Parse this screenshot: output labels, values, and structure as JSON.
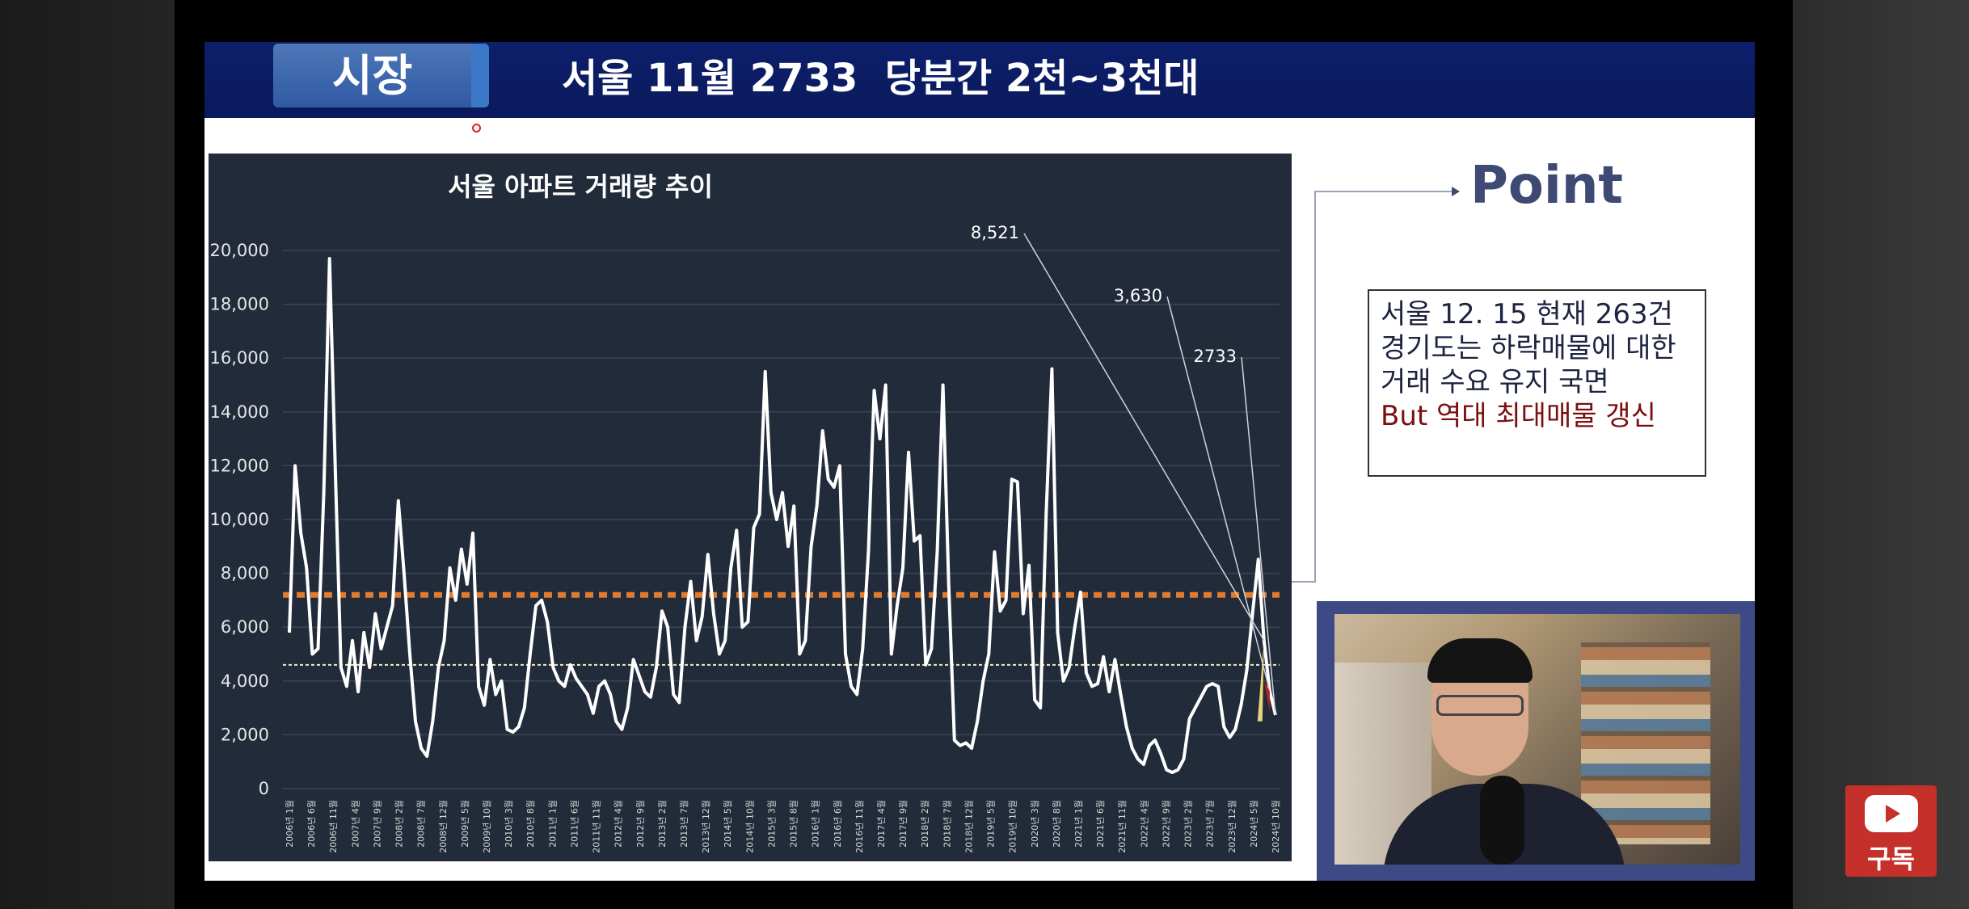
{
  "slide": {
    "tag": "시장",
    "headline": "서울 11월 2733  당분간 2천~3천대"
  },
  "point": {
    "title": "Point",
    "notes": [
      "서울 12. 15 현재 263건",
      "경기도는 하락매물에 대한",
      "거래 수요 유지 국면",
      "But 역대 최대매물 갱신"
    ]
  },
  "subscribe": {
    "label": "구독"
  },
  "colors": {
    "title_bar": "#0b1a5c",
    "chart_bg": "#222b3a",
    "line": "#ffffff",
    "ref_line_orange": "#e07b2f",
    "ref_line_light": "#f3f0b8",
    "note_red": "#7a1010",
    "subscribe_red": "#c5302b"
  },
  "chart_data": {
    "type": "line",
    "title": "서울 아파트 거래량 추이",
    "ylim": [
      0,
      20000
    ],
    "y_ticks": [
      "20,000",
      "18,000",
      "16,000",
      "14,000",
      "12,000",
      "10,000",
      "8,000",
      "6,000",
      "4,000",
      "2,000",
      "0"
    ],
    "x_ticks": [
      "2006년 1월",
      "2006년 6월",
      "2006년 11월",
      "2007년 4월",
      "2007년 9월",
      "2008년 2월",
      "2008년 7월",
      "2008년 12월",
      "2009년 5월",
      "2009년 10월",
      "2010년 3월",
      "2010년 8월",
      "2011년 1월",
      "2011년 6월",
      "2011년 11월",
      "2012년 4월",
      "2012년 9월",
      "2013년 2월",
      "2013년 7월",
      "2013년 12월",
      "2014년 5월",
      "2014년 10월",
      "2015년 3월",
      "2015년 8월",
      "2016년 1월",
      "2016년 6월",
      "2016년 11월",
      "2017년 4월",
      "2017년 9월",
      "2018년 2월",
      "2018년 7월",
      "2018년 12월",
      "2019년 5월",
      "2019년 10월",
      "2020년 3월",
      "2020년 8월",
      "2021년 1월",
      "2021년 6월",
      "2021년 11월",
      "2022년 4월",
      "2022년 9월",
      "2023년 2월",
      "2023년 7월",
      "2023년 12월",
      "2024년 5월",
      "2024년 10월"
    ],
    "series": [
      {
        "values": [
          5800,
          12000,
          9500,
          8200,
          5000,
          5200,
          11000,
          19700,
          12000,
          4500,
          3800,
          5500,
          3600,
          5800,
          4500,
          6500,
          5200,
          6000,
          6800,
          10700,
          8000,
          5000,
          2500,
          1500,
          1200,
          2500,
          4500,
          5500,
          8200,
          7000,
          8900,
          7600,
          9500,
          3800,
          3100,
          4800,
          3500,
          4000,
          2200,
          2100,
          2300,
          3000,
          5000,
          6800,
          7000,
          6200,
          4500,
          4000,
          3800,
          4600,
          4100,
          3800,
          3500,
          2800,
          3800,
          4000,
          3500,
          2500,
          2200,
          3000,
          4800,
          4200,
          3600,
          3400,
          4500,
          6600,
          6000,
          3500,
          3200,
          6000,
          7700,
          5500,
          6400,
          8700,
          6500,
          5000,
          5500,
          8200,
          9600,
          6000,
          6200,
          9700,
          10200,
          15500,
          11000,
          10000,
          11000,
          9000,
          10500,
          5000,
          5500,
          9000,
          10500,
          13300,
          11500,
          11200,
          12000,
          5000,
          3800,
          3500,
          5200,
          8800,
          14800,
          13000,
          15000,
          5000,
          6800,
          8200,
          12500,
          9200,
          9400,
          4600,
          5200,
          8800,
          15000,
          7600,
          1800,
          1600,
          1700,
          1500,
          2500,
          4000,
          5000,
          8800,
          6600,
          7000,
          11500,
          11400,
          6500,
          8300,
          3300,
          3000,
          10200,
          15600,
          5800,
          4000,
          4500,
          6000,
          7300,
          4300,
          3800,
          3900,
          4900,
          3600,
          4800,
          3500,
          2300,
          1500,
          1100,
          900,
          1600,
          1800,
          1300,
          700,
          600,
          700,
          1100,
          2600,
          3000,
          3400,
          3800,
          3900,
          3800,
          2300,
          1900,
          2200,
          3100,
          4400,
          6500,
          8521,
          5500,
          3630,
          2733
        ]
      }
    ],
    "annotations": [
      {
        "label": "8,521",
        "value": 8521
      },
      {
        "label": "3,630",
        "value": 3630
      },
      {
        "label": "2733",
        "value": 2733
      }
    ],
    "reference_lines": [
      {
        "value": 7200,
        "style": "orange dashed"
      },
      {
        "value": 4600,
        "style": "light dotted"
      }
    ],
    "grid": true
  }
}
